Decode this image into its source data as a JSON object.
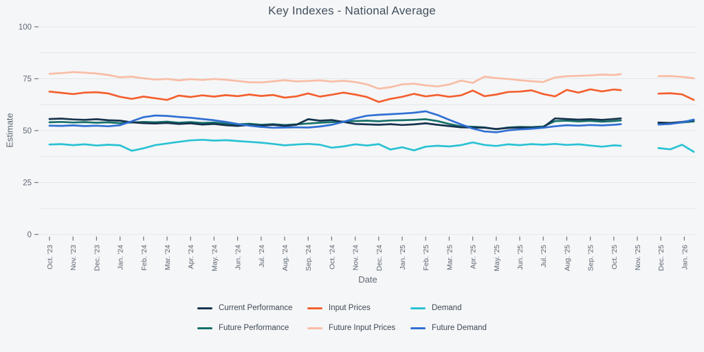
{
  "title": "Key Indexes - National Average",
  "colors": {
    "background": "#f5f6f7",
    "gridline": "#e3e6e9",
    "tick": "#6b7682",
    "title_text": "#42505e",
    "axis_text": "#5d6773",
    "legend_text": "#3d4854",
    "current_performance": "#16334e",
    "future_performance": "#15706a",
    "demand": "#29c2d4",
    "future_demand": "#2f6fd4",
    "input_prices": "#f45f2e",
    "future_input_prices": "#f9bca6"
  },
  "legend": {
    "items": [
      {
        "label": "Current Performance",
        "color": "#16334e"
      },
      {
        "label": "Input Prices",
        "color": "#f45f2e"
      },
      {
        "label": "Demand",
        "color": "#29c2d4"
      },
      {
        "label": "Future Performance",
        "color": "#15706a"
      },
      {
        "label": "Future Input Prices",
        "color": "#f9bca6"
      },
      {
        "label": "Future Demand",
        "color": "#2f6fd4"
      }
    ]
  },
  "chart_data": {
    "type": "line",
    "title": "Key Indexes - National Average",
    "xlabel": "Date",
    "ylabel": "Estimate",
    "ylim": [
      0,
      100
    ],
    "yticks": [
      0,
      25,
      50,
      75,
      100
    ],
    "minor_gridline_step": 12.5,
    "grid": true,
    "legend_position": "bottom",
    "x_tick_labels": [
      "Oct. '23",
      "Nov. '23",
      "Dec. '23",
      "Jan. '24",
      "Feb. '24",
      "Mar. '24",
      "Apr. '24",
      "May. '24",
      "Jun. '24",
      "Jul. '24",
      "Aug. '24",
      "Sep. '24",
      "Oct. '24",
      "Nov. '24",
      "Dec. '24",
      "Jan. '25",
      "Feb. '25",
      "Mar. '25",
      "Apr. '25",
      "May. '25",
      "Jun. '25",
      "Jul. '25",
      "Aug. '25",
      "Sep. '25",
      "Oct. '25",
      "Nov. '25",
      "Dec. '25",
      "Jan. '26"
    ],
    "x_note": "x values are month offsets from Oct. '23; data is weekly-ish; no data during Nov. '25 (gap)",
    "x": [
      0,
      0.5,
      1,
      1.5,
      2,
      2.5,
      3,
      3.5,
      4,
      4.5,
      5,
      5.5,
      6,
      6.5,
      7,
      7.5,
      8,
      8.5,
      9,
      9.5,
      10,
      10.5,
      11,
      11.5,
      12,
      12.5,
      13,
      13.5,
      14,
      14.5,
      15,
      15.5,
      16,
      16.5,
      17,
      17.5,
      18,
      18.5,
      19,
      19.5,
      20,
      20.5,
      21,
      21.5,
      22,
      22.5,
      23,
      23.5,
      24,
      24.3,
      25.9,
      26.4,
      26.9,
      27.4
    ],
    "series": [
      {
        "name": "Future Input Prices",
        "key": "future_input_prices",
        "color": "#f9bca6",
        "values": [
          77.4,
          77.7,
          78.2,
          77.9,
          77.5,
          76.8,
          75.7,
          76.0,
          75.2,
          74.6,
          74.9,
          74.2,
          74.8,
          74.4,
          74.9,
          74.5,
          73.9,
          73.3,
          73.2,
          73.7,
          74.3,
          73.7,
          73.9,
          74.2,
          73.6,
          74.0,
          73.4,
          72.3,
          70.2,
          70.9,
          72.3,
          72.6,
          71.8,
          71.3,
          72.2,
          74.1,
          73.0,
          76.0,
          75.3,
          74.9,
          74.3,
          73.8,
          73.4,
          75.6,
          76.2,
          76.4,
          76.6,
          77.0,
          76.8,
          77.2,
          76.2,
          76.3,
          75.9,
          75.2
        ]
      },
      {
        "name": "Input Prices",
        "key": "input_prices",
        "color": "#f45f2e",
        "values": [
          68.8,
          68.2,
          67.6,
          68.3,
          68.5,
          67.9,
          66.3,
          65.3,
          66.4,
          65.6,
          64.8,
          66.9,
          66.2,
          67.0,
          66.4,
          67.1,
          66.6,
          67.4,
          66.7,
          67.2,
          65.9,
          66.5,
          67.9,
          66.4,
          67.3,
          68.3,
          67.4,
          66.2,
          63.8,
          65.3,
          66.3,
          67.7,
          66.5,
          67.2,
          66.3,
          67.0,
          69.3,
          66.6,
          67.4,
          68.6,
          68.8,
          69.4,
          67.6,
          66.5,
          69.6,
          68.3,
          69.9,
          68.9,
          69.8,
          69.5,
          67.8,
          68.0,
          67.5,
          64.8
        ]
      },
      {
        "name": "Demand",
        "key": "demand",
        "color": "#29c2d4",
        "values": [
          43.3,
          43.5,
          43.0,
          43.4,
          42.8,
          43.2,
          42.9,
          40.3,
          41.5,
          43.0,
          43.8,
          44.6,
          45.3,
          45.6,
          45.2,
          45.4,
          45.0,
          44.6,
          44.2,
          43.6,
          42.9,
          43.3,
          43.6,
          43.2,
          41.8,
          42.4,
          43.4,
          42.8,
          43.5,
          40.9,
          42.0,
          40.5,
          42.3,
          42.7,
          42.4,
          43.0,
          44.3,
          43.1,
          42.6,
          43.4,
          43.0,
          43.5,
          43.2,
          43.6,
          43.1,
          43.4,
          42.8,
          42.3,
          42.9,
          42.7,
          41.6,
          41.0,
          43.2,
          39.8
        ]
      },
      {
        "name": "Future Performance",
        "key": "future_performance",
        "color": "#15706a",
        "values": [
          54.0,
          54.2,
          53.9,
          54.1,
          53.8,
          54.0,
          53.6,
          53.9,
          54.2,
          54.0,
          54.3,
          53.8,
          54.1,
          53.7,
          53.9,
          53.4,
          53.0,
          53.3,
          52.8,
          53.1,
          52.7,
          53.0,
          53.4,
          53.8,
          54.1,
          54.4,
          54.6,
          54.8,
          54.5,
          54.9,
          55.0,
          55.2,
          55.5,
          54.6,
          53.2,
          52.1,
          51.9,
          51.6,
          50.7,
          51.5,
          51.8,
          51.7,
          52.0,
          54.6,
          54.8,
          54.4,
          54.7,
          54.3,
          54.6,
          54.9,
          53.5,
          53.4,
          53.9,
          54.4
        ]
      },
      {
        "name": "Current Performance",
        "key": "current_performance",
        "color": "#16334e",
        "values": [
          55.6,
          55.8,
          55.4,
          55.2,
          55.5,
          55.0,
          54.8,
          54.0,
          53.6,
          53.4,
          53.7,
          53.2,
          53.5,
          52.9,
          53.2,
          52.6,
          52.3,
          52.7,
          52.4,
          52.8,
          52.3,
          52.8,
          55.5,
          54.8,
          55.1,
          54.2,
          53.2,
          53.0,
          52.8,
          53.1,
          52.7,
          53.0,
          53.5,
          52.8,
          52.2,
          51.6,
          51.5,
          51.4,
          50.8,
          51.3,
          51.5,
          51.4,
          51.6,
          55.9,
          55.6,
          55.3,
          55.5,
          55.2,
          55.6,
          55.9,
          53.9,
          53.7,
          54.2,
          55.0
        ]
      },
      {
        "name": "Future Demand",
        "key": "future_demand",
        "color": "#2f6fd4",
        "values": [
          52.4,
          52.3,
          52.5,
          52.2,
          52.4,
          52.1,
          52.6,
          54.5,
          56.5,
          57.3,
          57.1,
          56.6,
          56.2,
          55.6,
          55.0,
          54.2,
          53.2,
          52.4,
          51.8,
          51.4,
          51.5,
          51.6,
          51.5,
          52.0,
          52.8,
          54.2,
          55.9,
          57.2,
          57.6,
          57.9,
          58.2,
          58.6,
          59.3,
          57.5,
          55.2,
          53.0,
          51.0,
          49.6,
          49.2,
          50.1,
          50.6,
          50.9,
          51.4,
          52.1,
          52.6,
          52.4,
          52.7,
          52.5,
          52.8,
          53.1,
          52.9,
          53.2,
          54.0,
          55.3
        ]
      }
    ]
  }
}
